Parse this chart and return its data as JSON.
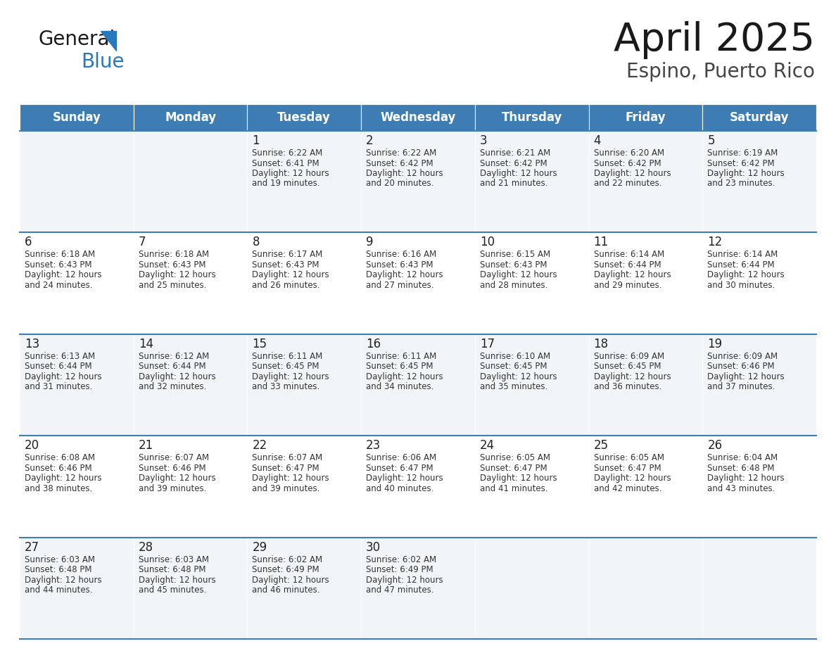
{
  "title": "April 2025",
  "subtitle": "Espino, Puerto Rico",
  "header_color": "#3d7db3",
  "header_text_color": "#ffffff",
  "day_names": [
    "Sunday",
    "Monday",
    "Tuesday",
    "Wednesday",
    "Thursday",
    "Friday",
    "Saturday"
  ],
  "row_bg_odd": "#f2f5f8",
  "row_bg_even": "#ffffff",
  "grid_line_color": "#3d7db3",
  "cell_text_color": "#333333",
  "date_num_color": "#222222",
  "days": [
    {
      "date": 1,
      "col": 2,
      "row": 0,
      "sunrise": "6:22 AM",
      "sunset": "6:41 PM",
      "daylight_min": 19
    },
    {
      "date": 2,
      "col": 3,
      "row": 0,
      "sunrise": "6:22 AM",
      "sunset": "6:42 PM",
      "daylight_min": 20
    },
    {
      "date": 3,
      "col": 4,
      "row": 0,
      "sunrise": "6:21 AM",
      "sunset": "6:42 PM",
      "daylight_min": 21
    },
    {
      "date": 4,
      "col": 5,
      "row": 0,
      "sunrise": "6:20 AM",
      "sunset": "6:42 PM",
      "daylight_min": 22
    },
    {
      "date": 5,
      "col": 6,
      "row": 0,
      "sunrise": "6:19 AM",
      "sunset": "6:42 PM",
      "daylight_min": 23
    },
    {
      "date": 6,
      "col": 0,
      "row": 1,
      "sunrise": "6:18 AM",
      "sunset": "6:43 PM",
      "daylight_min": 24
    },
    {
      "date": 7,
      "col": 1,
      "row": 1,
      "sunrise": "6:18 AM",
      "sunset": "6:43 PM",
      "daylight_min": 25
    },
    {
      "date": 8,
      "col": 2,
      "row": 1,
      "sunrise": "6:17 AM",
      "sunset": "6:43 PM",
      "daylight_min": 26
    },
    {
      "date": 9,
      "col": 3,
      "row": 1,
      "sunrise": "6:16 AM",
      "sunset": "6:43 PM",
      "daylight_min": 27
    },
    {
      "date": 10,
      "col": 4,
      "row": 1,
      "sunrise": "6:15 AM",
      "sunset": "6:43 PM",
      "daylight_min": 28
    },
    {
      "date": 11,
      "col": 5,
      "row": 1,
      "sunrise": "6:14 AM",
      "sunset": "6:44 PM",
      "daylight_min": 29
    },
    {
      "date": 12,
      "col": 6,
      "row": 1,
      "sunrise": "6:14 AM",
      "sunset": "6:44 PM",
      "daylight_min": 30
    },
    {
      "date": 13,
      "col": 0,
      "row": 2,
      "sunrise": "6:13 AM",
      "sunset": "6:44 PM",
      "daylight_min": 31
    },
    {
      "date": 14,
      "col": 1,
      "row": 2,
      "sunrise": "6:12 AM",
      "sunset": "6:44 PM",
      "daylight_min": 32
    },
    {
      "date": 15,
      "col": 2,
      "row": 2,
      "sunrise": "6:11 AM",
      "sunset": "6:45 PM",
      "daylight_min": 33
    },
    {
      "date": 16,
      "col": 3,
      "row": 2,
      "sunrise": "6:11 AM",
      "sunset": "6:45 PM",
      "daylight_min": 34
    },
    {
      "date": 17,
      "col": 4,
      "row": 2,
      "sunrise": "6:10 AM",
      "sunset": "6:45 PM",
      "daylight_min": 35
    },
    {
      "date": 18,
      "col": 5,
      "row": 2,
      "sunrise": "6:09 AM",
      "sunset": "6:45 PM",
      "daylight_min": 36
    },
    {
      "date": 19,
      "col": 6,
      "row": 2,
      "sunrise": "6:09 AM",
      "sunset": "6:46 PM",
      "daylight_min": 37
    },
    {
      "date": 20,
      "col": 0,
      "row": 3,
      "sunrise": "6:08 AM",
      "sunset": "6:46 PM",
      "daylight_min": 38
    },
    {
      "date": 21,
      "col": 1,
      "row": 3,
      "sunrise": "6:07 AM",
      "sunset": "6:46 PM",
      "daylight_min": 39
    },
    {
      "date": 22,
      "col": 2,
      "row": 3,
      "sunrise": "6:07 AM",
      "sunset": "6:47 PM",
      "daylight_min": 39
    },
    {
      "date": 23,
      "col": 3,
      "row": 3,
      "sunrise": "6:06 AM",
      "sunset": "6:47 PM",
      "daylight_min": 40
    },
    {
      "date": 24,
      "col": 4,
      "row": 3,
      "sunrise": "6:05 AM",
      "sunset": "6:47 PM",
      "daylight_min": 41
    },
    {
      "date": 25,
      "col": 5,
      "row": 3,
      "sunrise": "6:05 AM",
      "sunset": "6:47 PM",
      "daylight_min": 42
    },
    {
      "date": 26,
      "col": 6,
      "row": 3,
      "sunrise": "6:04 AM",
      "sunset": "6:48 PM",
      "daylight_min": 43
    },
    {
      "date": 27,
      "col": 0,
      "row": 4,
      "sunrise": "6:03 AM",
      "sunset": "6:48 PM",
      "daylight_min": 44
    },
    {
      "date": 28,
      "col": 1,
      "row": 4,
      "sunrise": "6:03 AM",
      "sunset": "6:48 PM",
      "daylight_min": 45
    },
    {
      "date": 29,
      "col": 2,
      "row": 4,
      "sunrise": "6:02 AM",
      "sunset": "6:49 PM",
      "daylight_min": 46
    },
    {
      "date": 30,
      "col": 3,
      "row": 4,
      "sunrise": "6:02 AM",
      "sunset": "6:49 PM",
      "daylight_min": 47
    }
  ],
  "logo_color_general": "#1a1a1a",
  "logo_color_blue": "#2878be",
  "logo_triangle_color": "#2878be",
  "title_fontsize": 40,
  "subtitle_fontsize": 20,
  "header_fontsize": 12,
  "date_fontsize": 12,
  "cell_fontsize": 8.5
}
